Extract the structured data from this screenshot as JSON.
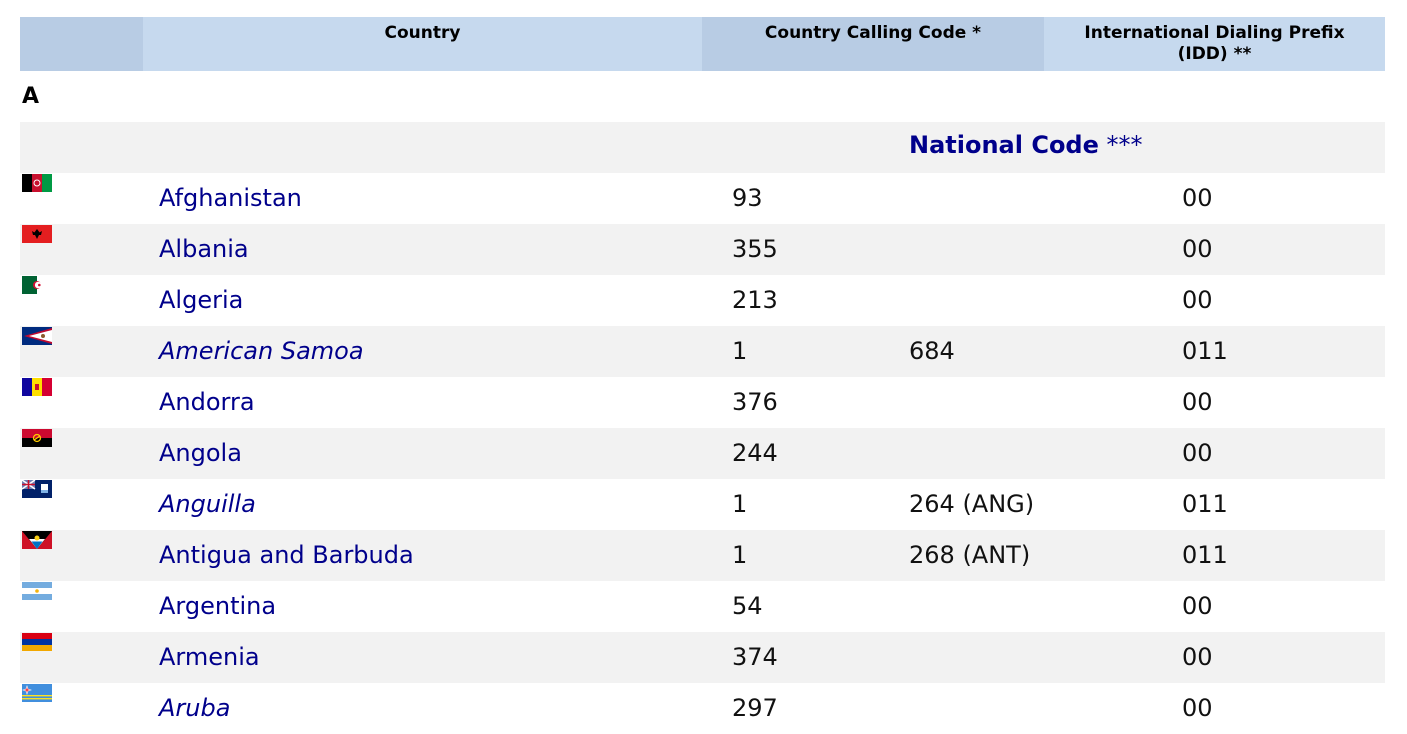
{
  "header": {
    "country": "Country",
    "calling_code": "Country Calling Code *",
    "idd_line1": "International Dialing Prefix",
    "idd_line2": "(IDD) **"
  },
  "section_letter": "A",
  "national_code_label": "National Code",
  "national_code_stars": "***",
  "countries": [
    {
      "name": "Afghanistan",
      "italic": false,
      "calling_code": "93",
      "national_code": "",
      "idd": "00",
      "flag": "afghanistan-flag-icon"
    },
    {
      "name": "Albania",
      "italic": false,
      "calling_code": "355",
      "national_code": "",
      "idd": "00",
      "flag": "albania-flag-icon"
    },
    {
      "name": "Algeria",
      "italic": false,
      "calling_code": "213",
      "national_code": "",
      "idd": "00",
      "flag": "algeria-flag-icon"
    },
    {
      "name": "American Samoa",
      "italic": true,
      "calling_code": "1",
      "national_code": "684",
      "idd": "011",
      "flag": "american-samoa-flag-icon"
    },
    {
      "name": "Andorra",
      "italic": false,
      "calling_code": "376",
      "national_code": "",
      "idd": "00",
      "flag": "andorra-flag-icon"
    },
    {
      "name": "Angola",
      "italic": false,
      "calling_code": "244",
      "national_code": "",
      "idd": "00",
      "flag": "angola-flag-icon"
    },
    {
      "name": "Anguilla",
      "italic": true,
      "calling_code": "1",
      "national_code": "264 (ANG)",
      "idd": "011",
      "flag": "anguilla-flag-icon"
    },
    {
      "name": "Antigua and Barbuda",
      "italic": false,
      "calling_code": "1",
      "national_code": "268 (ANT)",
      "idd": "011",
      "flag": "antigua-flag-icon"
    },
    {
      "name": "Argentina",
      "italic": false,
      "calling_code": "54",
      "national_code": "",
      "idd": "00",
      "flag": "argentina-flag-icon"
    },
    {
      "name": "Armenia",
      "italic": false,
      "calling_code": "374",
      "national_code": "",
      "idd": "00",
      "flag": "armenia-flag-icon"
    },
    {
      "name": "Aruba",
      "italic": true,
      "calling_code": "297",
      "national_code": "",
      "idd": "00",
      "flag": "aruba-flag-icon"
    }
  ],
  "colors": {
    "header_dark": "#b8cce4",
    "header_light": "#c6d9ee",
    "link": "#00008b",
    "row_alt": "#f2f2f2"
  }
}
